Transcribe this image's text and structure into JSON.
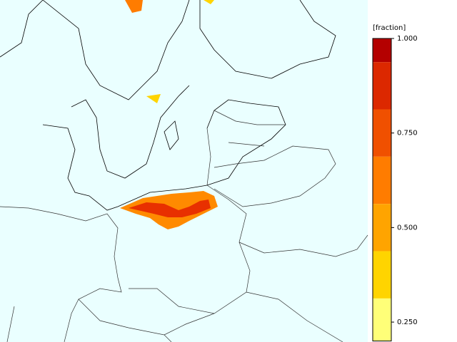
{
  "colorbar": {
    "title": "[fraction]",
    "range": [
      0.2,
      1.0
    ],
    "boundaries": [
      1.0,
      0.9375,
      0.8125,
      0.6875,
      0.5625,
      0.4375,
      0.3125,
      0.2
    ],
    "colors": [
      "#b40000",
      "#dc2800",
      "#f05000",
      "#ff7c00",
      "#ffa400",
      "#ffd400",
      "#ffff78"
    ],
    "ticks": [
      {
        "value": 1.0,
        "label": "1.000"
      },
      {
        "value": 0.75,
        "label": "0.750"
      },
      {
        "value": 0.5,
        "label": "0.500"
      },
      {
        "value": 0.25,
        "label": "0.250"
      }
    ]
  }
}
